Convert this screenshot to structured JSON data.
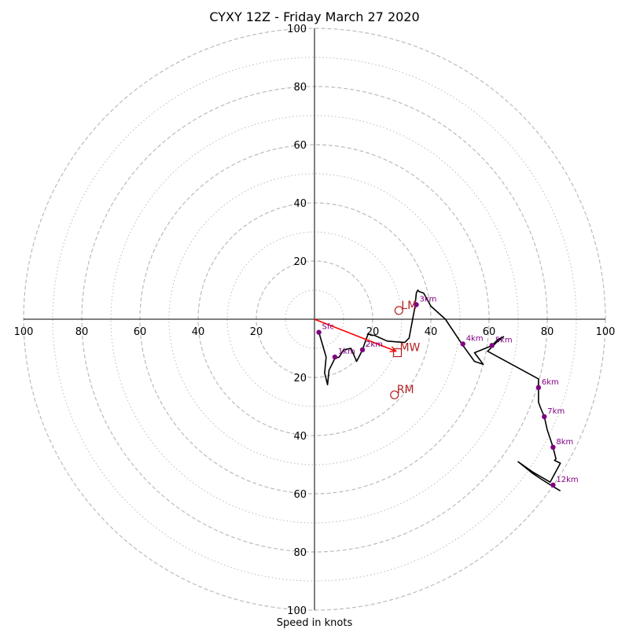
{
  "chart_data": {
    "type": "hodograph",
    "title": "CYXY 12Z - Friday March 27 2020",
    "xlabel": "Speed in knots",
    "rings_major": [
      20,
      40,
      60,
      80,
      100
    ],
    "rings_minor": [
      10,
      30,
      50,
      70,
      90
    ],
    "axis_tick_labels": [
      "100",
      "80",
      "60",
      "40",
      "20",
      "20",
      "40",
      "60",
      "80",
      "100"
    ],
    "xlim": [
      -100,
      100
    ],
    "ylim": [
      -100,
      100
    ],
    "grid": true,
    "colors": {
      "trace": "#000000",
      "heights": "#800080",
      "motion": "#b22222",
      "shear": "#ff0000",
      "grid": "#bbbbbb"
    },
    "trace": {
      "u": [
        1.5,
        4,
        3.5,
        4.5,
        5,
        7,
        8.5,
        10,
        12.5,
        14.5,
        16.5,
        17.5,
        18.5,
        19.5,
        20.5,
        25,
        31,
        32.5,
        34.5,
        35,
        35.5,
        36,
        37.5,
        40,
        45,
        51,
        55,
        58,
        55,
        60,
        61,
        63,
        65,
        62.5,
        60,
        59.5,
        65,
        77,
        77,
        77,
        77.5,
        79,
        80,
        82,
        83,
        82.5,
        84.5,
        81,
        75,
        70,
        75,
        78,
        82,
        84.5
      ],
      "v": [
        -4.5,
        -13,
        -18.5,
        -22.5,
        -17.5,
        -13.5,
        -13,
        -10.5,
        -10,
        -14.5,
        -10.5,
        -7.5,
        -5,
        -5.5,
        -5.5,
        -7.5,
        -8,
        -6.5,
        4,
        9,
        10,
        9.5,
        9,
        4.5,
        0,
        -9,
        -14.5,
        -15.5,
        -11.5,
        -9.5,
        -9,
        -7,
        -6,
        -8,
        -10.5,
        -11,
        -14,
        -20.5,
        -23.5,
        -28.5,
        -30,
        -33.5,
        -38,
        -44,
        -48,
        -48.5,
        -49.5,
        -56,
        -52.5,
        -49,
        -53,
        -55,
        -57.5,
        -59
      ]
    },
    "heights": [
      {
        "label": "Sfc",
        "u": 1.5,
        "v": -4.5
      },
      {
        "label": "1km",
        "u": 7,
        "v": -13
      },
      {
        "label": "2km",
        "u": 16.5,
        "v": -10.5
      },
      {
        "label": "3km",
        "u": 35,
        "v": 5
      },
      {
        "label": "4km",
        "u": 51,
        "v": -8.5
      },
      {
        "label": "5km",
        "u": 61,
        "v": -9
      },
      {
        "label": "6km",
        "u": 77,
        "v": -23.5
      },
      {
        "label": "7km",
        "u": 79,
        "v": -33.5
      },
      {
        "label": "8km",
        "u": 82,
        "v": -44
      },
      {
        "label": "12km",
        "u": 82,
        "v": -57
      }
    ],
    "storm_motion": [
      {
        "label": "LM",
        "u": 29,
        "v": 3,
        "marker": "circle"
      },
      {
        "label": "MW",
        "u": 28.5,
        "v": -11.5,
        "marker": "square"
      },
      {
        "label": "RM",
        "u": 27.5,
        "v": -26,
        "marker": "circle"
      }
    ],
    "shear_vector": {
      "u": 28,
      "v": -11
    }
  }
}
